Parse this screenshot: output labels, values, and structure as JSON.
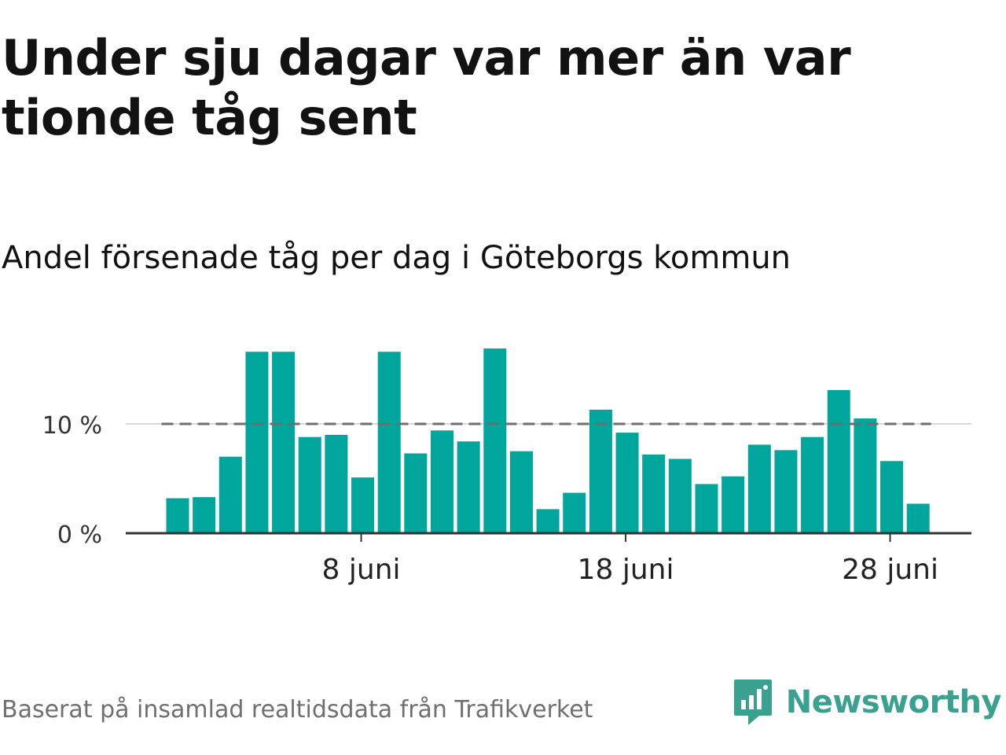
{
  "title": "Under sju dagar var mer än var tionde tåg sent",
  "subtitle": "Andel försenade tåg per dag i Göteborgs kommun",
  "footer": "Baserat på insamlad realtidsdata från Trafikverket",
  "brand": "Newsworthy",
  "colors": {
    "bar": "#00a59b",
    "reference_line": "#6e6e6e",
    "grid": "#d9d9d9",
    "axis": "#333333",
    "brand": "#3aa191"
  },
  "chart_data": {
    "type": "bar",
    "x_unit": "day of June",
    "categories": [
      1,
      2,
      3,
      4,
      5,
      6,
      7,
      8,
      9,
      10,
      11,
      12,
      13,
      14,
      15,
      16,
      17,
      18,
      19,
      20,
      21,
      22,
      23,
      24,
      25,
      26,
      27,
      28,
      29
    ],
    "values": [
      3.2,
      3.3,
      7.0,
      16.6,
      16.6,
      8.8,
      9.0,
      5.1,
      16.6,
      7.3,
      9.4,
      8.4,
      16.9,
      7.5,
      2.2,
      3.7,
      11.3,
      9.2,
      7.2,
      6.8,
      4.5,
      5.2,
      8.1,
      7.6,
      8.8,
      13.1,
      10.5,
      6.6,
      2.7
    ],
    "reference_line": {
      "value": 10,
      "style": "dashed"
    },
    "ylim": [
      0,
      18
    ],
    "yticks": [
      {
        "value": 0,
        "label": "0 %"
      },
      {
        "value": 10,
        "label": "10 %"
      }
    ],
    "xticks": [
      {
        "value": 8,
        "label": "8 juni"
      },
      {
        "value": 18,
        "label": "18 juni"
      },
      {
        "value": 28,
        "label": "28 juni"
      }
    ],
    "xlabel": "",
    "ylabel": ""
  }
}
